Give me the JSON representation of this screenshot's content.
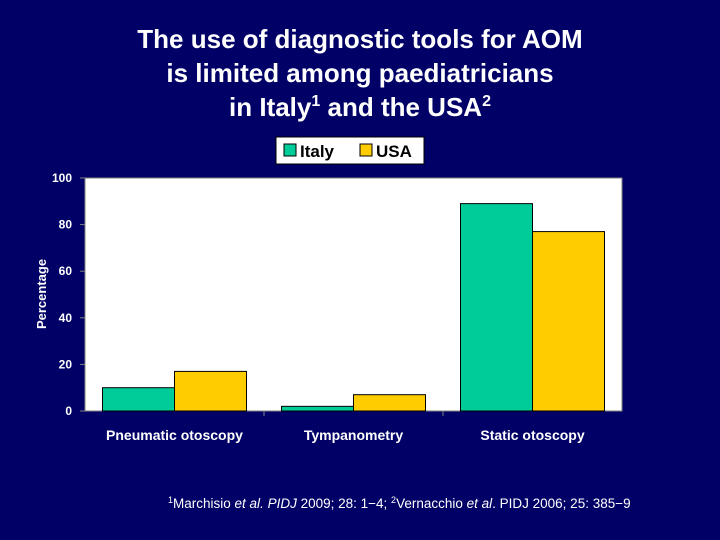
{
  "slide": {
    "title_lines": [
      {
        "text": "The use of diagnostic tools for AOM",
        "sup": "",
        "tail": "",
        "sup2": ""
      },
      {
        "text": "is limited among paediatricians",
        "sup": "",
        "tail": "",
        "sup2": ""
      },
      {
        "text": "in Italy",
        "sup": "1",
        "tail": " and the USA",
        "sup2": "2"
      }
    ],
    "footnote": {
      "ref1_num": "1",
      "ref1_author": "Marchisio ",
      "ref1_etal": "et al",
      "ref1_journal": ". PIDJ",
      "ref1_rest": " 2009; 28: 1−4; ",
      "ref2_num": "2",
      "ref2_author": "Vernacchio ",
      "ref2_etal": "et al",
      "ref2_rest": ". PIDJ 2006; 25: 385−9"
    }
  },
  "chart_data": {
    "type": "bar",
    "title": "",
    "categories": [
      "Pneumatic otoscopy",
      "Tympanometry",
      "Static otoscopy"
    ],
    "series": [
      {
        "name": "Italy",
        "values": [
          10,
          2,
          89
        ],
        "color": "#00CC99"
      },
      {
        "name": "USA",
        "values": [
          17,
          7,
          77
        ],
        "color": "#FFCC00"
      }
    ],
    "xlabel": "",
    "ylabel": "Percentage",
    "ylim": [
      0,
      100
    ],
    "yticks": [
      0,
      20,
      40,
      60,
      80,
      100
    ],
    "grid": false,
    "legend": "top-center",
    "plot_bg": "#FFFFFF",
    "axis_color": "#808080"
  }
}
